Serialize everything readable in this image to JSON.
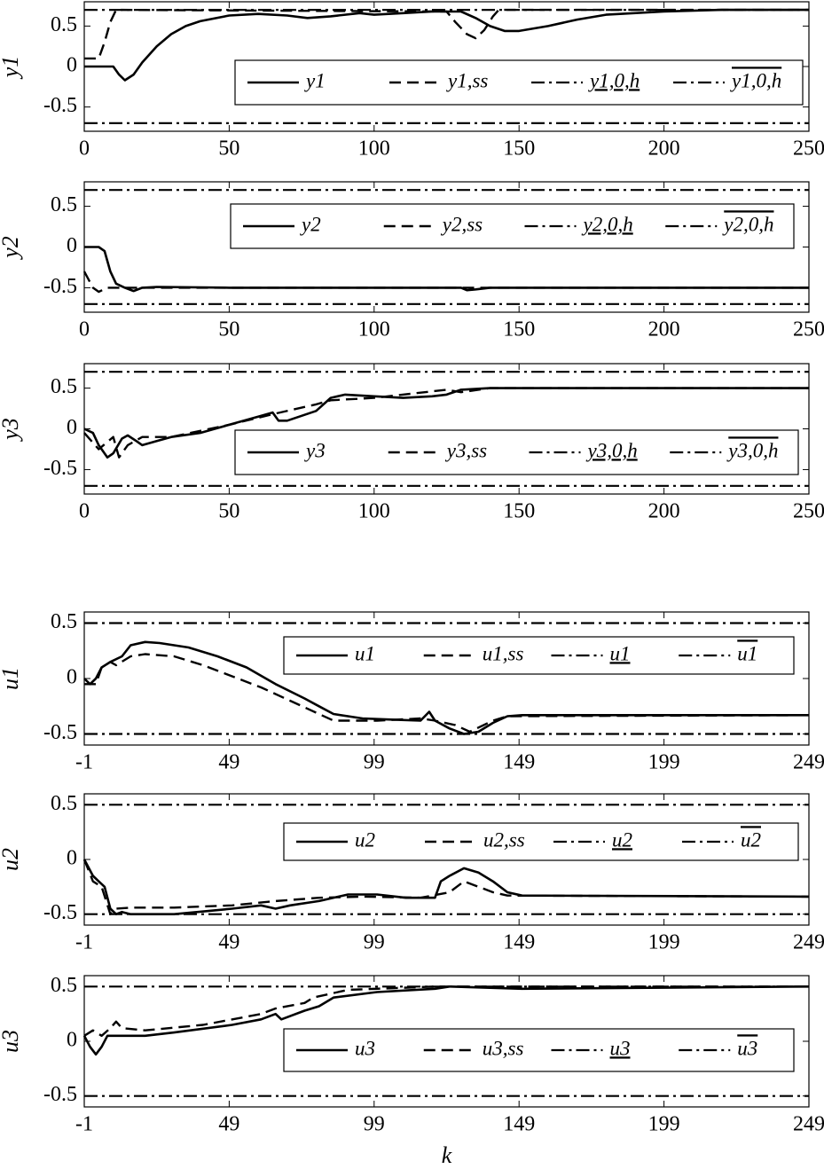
{
  "chart_data": [
    {
      "type": "line",
      "ylabel": "y1",
      "xlim": [
        0,
        250
      ],
      "xticks": [
        0,
        50,
        100,
        150,
        200,
        250
      ],
      "ylim": [
        -0.8,
        0.8
      ],
      "yticks": [
        -0.5,
        0,
        0.5
      ],
      "series": [
        {
          "name": "y1",
          "style": "solid",
          "x": [
            0,
            5,
            10,
            12,
            14,
            17,
            20,
            25,
            30,
            35,
            40,
            50,
            60,
            70,
            77,
            85,
            95,
            100,
            110,
            120,
            130,
            135,
            140,
            145,
            150,
            160,
            170,
            180,
            200,
            220,
            250
          ],
          "values": [
            0,
            0,
            0,
            -0.1,
            -0.17,
            -0.1,
            0.05,
            0.25,
            0.4,
            0.5,
            0.56,
            0.63,
            0.65,
            0.63,
            0.6,
            0.62,
            0.66,
            0.64,
            0.66,
            0.68,
            0.68,
            0.6,
            0.5,
            0.44,
            0.44,
            0.5,
            0.58,
            0.64,
            0.68,
            0.7,
            0.7
          ]
        },
        {
          "name": "y1,ss",
          "style": "dashed",
          "x": [
            0,
            5,
            7,
            9,
            11,
            125,
            128,
            132,
            135,
            138,
            141,
            143,
            250
          ],
          "values": [
            0.1,
            0.1,
            0.3,
            0.55,
            0.7,
            0.68,
            0.55,
            0.4,
            0.35,
            0.45,
            0.62,
            0.7,
            0.7
          ]
        },
        {
          "name": "y1,0,h",
          "style": "dashdot",
          "x": [
            0,
            250
          ],
          "values": [
            -0.7,
            -0.7
          ]
        },
        {
          "name": "y1,0,h",
          "style": "dashdot",
          "x": [
            0,
            250
          ],
          "values": [
            0.7,
            0.7
          ]
        }
      ]
    },
    {
      "type": "line",
      "ylabel": "y2",
      "xlim": [
        0,
        250
      ],
      "xticks": [
        0,
        50,
        100,
        150,
        200,
        250
      ],
      "ylim": [
        -0.8,
        0.8
      ],
      "yticks": [
        -0.5,
        0,
        0.5
      ],
      "series": [
        {
          "name": "y2",
          "style": "solid",
          "x": [
            0,
            5,
            7,
            9,
            11,
            14,
            17,
            20,
            25,
            50,
            130,
            132,
            135,
            140,
            250
          ],
          "values": [
            0,
            0,
            -0.05,
            -0.3,
            -0.45,
            -0.5,
            -0.54,
            -0.5,
            -0.49,
            -0.5,
            -0.5,
            -0.53,
            -0.52,
            -0.5,
            -0.5
          ]
        },
        {
          "name": "y2,ss",
          "style": "dashed",
          "x": [
            0,
            3,
            5,
            8,
            250
          ],
          "values": [
            -0.3,
            -0.5,
            -0.55,
            -0.5,
            -0.5
          ]
        },
        {
          "name": "y2,0,h",
          "style": "dashdot",
          "x": [
            0,
            250
          ],
          "values": [
            -0.7,
            -0.7
          ]
        },
        {
          "name": "y2,0,h",
          "style": "dashdot",
          "x": [
            0,
            250
          ],
          "values": [
            0.7,
            0.7
          ]
        }
      ]
    },
    {
      "type": "line",
      "ylabel": "y3",
      "xlim": [
        0,
        250
      ],
      "xticks": [
        0,
        50,
        100,
        150,
        200,
        250
      ],
      "ylim": [
        -0.8,
        0.8
      ],
      "yticks": [
        -0.5,
        0,
        0.5
      ],
      "series": [
        {
          "name": "y3",
          "style": "solid",
          "x": [
            0,
            3,
            5,
            8,
            10,
            13,
            15,
            18,
            20,
            25,
            30,
            40,
            50,
            60,
            65,
            67,
            70,
            80,
            85,
            90,
            100,
            110,
            120,
            125,
            130,
            140,
            150,
            250
          ],
          "values": [
            0,
            -0.05,
            -0.2,
            -0.35,
            -0.3,
            -0.12,
            -0.08,
            -0.15,
            -0.2,
            -0.15,
            -0.1,
            -0.05,
            0.05,
            0.15,
            0.2,
            0.1,
            0.1,
            0.22,
            0.38,
            0.42,
            0.4,
            0.38,
            0.4,
            0.42,
            0.48,
            0.5,
            0.5,
            0.5
          ]
        },
        {
          "name": "y3,ss",
          "style": "dashed",
          "x": [
            0,
            5,
            10,
            12,
            15,
            20,
            30,
            50,
            65,
            80,
            85,
            100,
            125,
            130,
            140,
            250
          ],
          "values": [
            -0.05,
            -0.25,
            -0.1,
            -0.35,
            -0.2,
            -0.1,
            -0.1,
            0.05,
            0.18,
            0.3,
            0.35,
            0.38,
            0.48,
            0.45,
            0.5,
            0.5
          ]
        },
        {
          "name": "y3,0,h",
          "style": "dashdot",
          "x": [
            0,
            250
          ],
          "values": [
            -0.7,
            -0.7
          ]
        },
        {
          "name": "y3,0,h",
          "style": "dashdot",
          "x": [
            0,
            250
          ],
          "values": [
            0.7,
            0.7
          ]
        }
      ]
    },
    {
      "type": "line",
      "ylabel": "u1",
      "xlim": [
        -1,
        249
      ],
      "xticks": [
        -1,
        49,
        99,
        149,
        199,
        249
      ],
      "ylim": [
        -0.6,
        0.6
      ],
      "yticks": [
        -0.5,
        0,
        0.5
      ],
      "series": [
        {
          "name": "u1",
          "style": "solid",
          "x": [
            -1,
            1,
            3,
            5,
            8,
            12,
            15,
            20,
            25,
            35,
            45,
            55,
            65,
            75,
            80,
            85,
            95,
            105,
            115,
            118,
            120,
            125,
            130,
            135,
            140,
            145,
            150,
            249
          ],
          "values": [
            0,
            -0.05,
            0,
            0.1,
            0.15,
            0.2,
            0.3,
            0.33,
            0.32,
            0.28,
            0.2,
            0.1,
            -0.05,
            -0.18,
            -0.25,
            -0.32,
            -0.36,
            -0.37,
            -0.38,
            -0.3,
            -0.38,
            -0.45,
            -0.5,
            -0.48,
            -0.4,
            -0.34,
            -0.33,
            -0.33
          ]
        },
        {
          "name": "u1,ss",
          "style": "dashed",
          "x": [
            -1,
            3,
            5,
            8,
            10,
            15,
            20,
            30,
            40,
            50,
            60,
            70,
            80,
            85,
            100,
            115,
            120,
            127,
            132,
            140,
            145,
            249
          ],
          "values": [
            -0.05,
            -0.05,
            0.1,
            0.15,
            0.12,
            0.2,
            0.22,
            0.2,
            0.12,
            0.02,
            -0.08,
            -0.2,
            -0.32,
            -0.38,
            -0.38,
            -0.36,
            -0.38,
            -0.42,
            -0.48,
            -0.38,
            -0.34,
            -0.33
          ]
        },
        {
          "name": "u1",
          "style": "dashdot",
          "x": [
            -1,
            249
          ],
          "values": [
            -0.5,
            -0.5
          ]
        },
        {
          "name": "u1",
          "style": "dashdot",
          "x": [
            -1,
            249
          ],
          "values": [
            0.5,
            0.5
          ]
        }
      ]
    },
    {
      "type": "line",
      "ylabel": "u2",
      "xlim": [
        -1,
        249
      ],
      "xticks": [
        -1,
        49,
        99,
        149,
        199,
        249
      ],
      "ylim": [
        -0.6,
        0.6
      ],
      "yticks": [
        -0.5,
        0,
        0.5
      ],
      "series": [
        {
          "name": "u2",
          "style": "solid",
          "x": [
            -1,
            2,
            4,
            6,
            8,
            10,
            12,
            15,
            30,
            50,
            60,
            65,
            70,
            80,
            90,
            100,
            110,
            120,
            122,
            125,
            130,
            135,
            140,
            145,
            150,
            249
          ],
          "values": [
            0,
            -0.15,
            -0.2,
            -0.25,
            -0.45,
            -0.5,
            -0.48,
            -0.5,
            -0.5,
            -0.45,
            -0.42,
            -0.45,
            -0.42,
            -0.38,
            -0.32,
            -0.32,
            -0.35,
            -0.35,
            -0.2,
            -0.15,
            -0.08,
            -0.12,
            -0.2,
            -0.3,
            -0.33,
            -0.34
          ]
        },
        {
          "name": "u2,ss",
          "style": "dashed",
          "x": [
            -1,
            2,
            5,
            8,
            10,
            15,
            30,
            50,
            65,
            80,
            95,
            115,
            125,
            130,
            135,
            140,
            145,
            249
          ],
          "values": [
            0,
            -0.2,
            -0.25,
            -0.5,
            -0.45,
            -0.44,
            -0.44,
            -0.42,
            -0.38,
            -0.35,
            -0.34,
            -0.35,
            -0.3,
            -0.2,
            -0.25,
            -0.3,
            -0.33,
            -0.34
          ]
        },
        {
          "name": "u2",
          "style": "dashdot",
          "x": [
            -1,
            249
          ],
          "values": [
            -0.5,
            -0.5
          ]
        },
        {
          "name": "u2",
          "style": "dashdot",
          "x": [
            -1,
            249
          ],
          "values": [
            0.5,
            0.5
          ]
        }
      ]
    },
    {
      "type": "line",
      "ylabel": "u3",
      "xlabel": "k",
      "xlim": [
        -1,
        249
      ],
      "xticks": [
        -1,
        49,
        99,
        149,
        199,
        249
      ],
      "ylim": [
        -0.6,
        0.6
      ],
      "yticks": [
        -0.5,
        0,
        0.5
      ],
      "series": [
        {
          "name": "u3",
          "style": "solid",
          "x": [
            -1,
            1,
            3,
            5,
            7,
            10,
            20,
            30,
            50,
            60,
            65,
            67,
            75,
            80,
            85,
            100,
            120,
            125,
            150,
            249
          ],
          "values": [
            0.05,
            -0.05,
            -0.12,
            -0.05,
            0.05,
            0.05,
            0.05,
            0.08,
            0.15,
            0.2,
            0.25,
            0.2,
            0.28,
            0.32,
            0.4,
            0.45,
            0.48,
            0.5,
            0.48,
            0.5
          ]
        },
        {
          "name": "u3,ss",
          "style": "dashed",
          "x": [
            -1,
            2,
            5,
            8,
            10,
            12,
            20,
            40,
            60,
            65,
            75,
            78,
            90,
            120,
            249
          ],
          "values": [
            0.05,
            0.1,
            0.05,
            0.12,
            0.18,
            0.12,
            0.1,
            0.15,
            0.25,
            0.3,
            0.35,
            0.4,
            0.47,
            0.5,
            0.5
          ]
        },
        {
          "name": "u3",
          "style": "dashdot",
          "x": [
            -1,
            249
          ],
          "values": [
            -0.5,
            -0.5
          ]
        },
        {
          "name": "u3",
          "style": "dashdot",
          "x": [
            -1,
            249
          ],
          "values": [
            0.5,
            0.5
          ]
        }
      ]
    }
  ]
}
